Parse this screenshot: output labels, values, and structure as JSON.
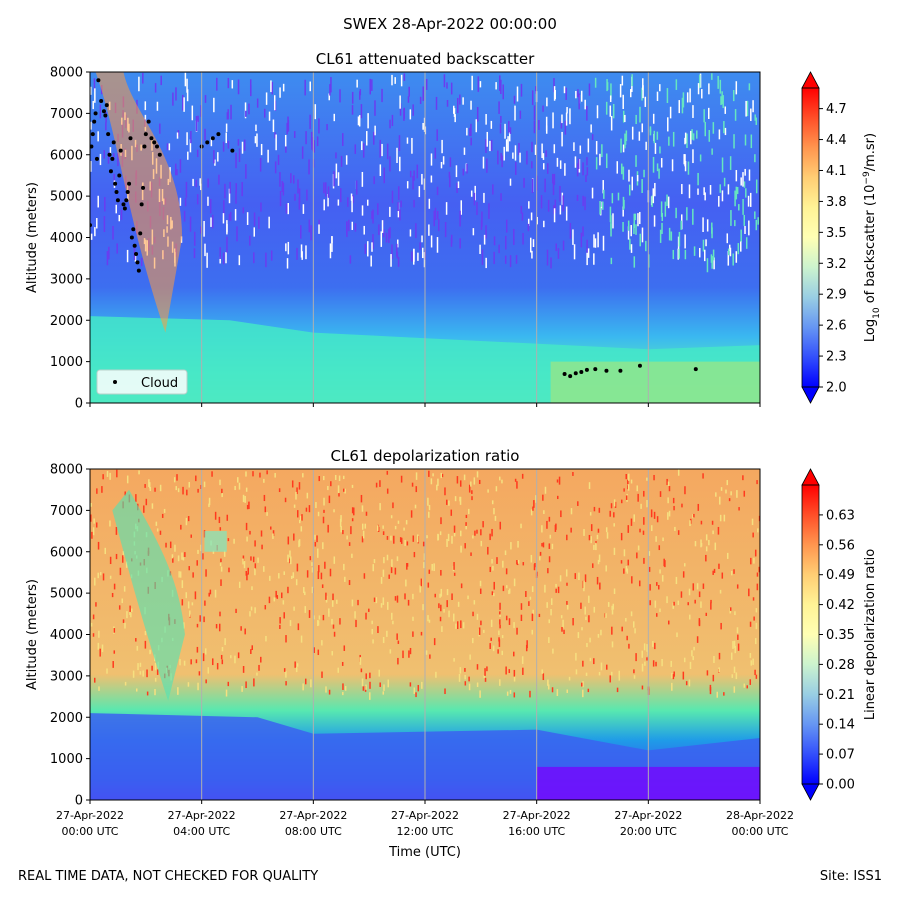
{
  "figure": {
    "title": "SWEX 28-Apr-2022 00:00:00",
    "footer_left": "REAL TIME DATA, NOT CHECKED FOR QUALITY",
    "footer_right": "Site: ISS1"
  },
  "chart_data": [
    {
      "type": "heatmap",
      "title": "CL61 attenuated backscatter",
      "xlabel": "",
      "ylabel": "Altitude (meters)",
      "xlim": [
        0,
        24
      ],
      "ylim": [
        0,
        8000
      ],
      "yticks": [
        0,
        1000,
        2000,
        3000,
        4000,
        5000,
        6000,
        7000,
        8000
      ],
      "xtick_hours": [
        0,
        4,
        8,
        12,
        16,
        20,
        24
      ],
      "x_ticklabels_shown": false,
      "grid": "vertical",
      "colormap": "rainbow",
      "colorbar": {
        "label_main": "Log",
        "label_sub": "10",
        "label_rest": " of backscatter (10",
        "label_sup": "−9",
        "label_end": "/m.sr)",
        "range": [
          2.0,
          4.9
        ],
        "extend": "both",
        "ticks": [
          "2.0",
          "2.3",
          "2.6",
          "2.9",
          "3.2",
          "3.5",
          "3.8",
          "4.1",
          "4.4",
          "4.7"
        ],
        "tick_values": [
          2.0,
          2.3,
          2.6,
          2.9,
          3.2,
          3.5,
          3.8,
          4.1,
          4.4,
          4.7
        ]
      },
      "legend": {
        "label": "Cloud",
        "marker": "black dot",
        "placement": "lower-left"
      },
      "cloud_points": [
        [
          0.05,
          6200
        ],
        [
          0.1,
          6500
        ],
        [
          0.15,
          6800
        ],
        [
          0.2,
          7000
        ],
        [
          0.25,
          5900
        ],
        [
          0.3,
          7800
        ],
        [
          0.4,
          7300
        ],
        [
          0.5,
          7050
        ],
        [
          0.55,
          6950
        ],
        [
          0.6,
          7200
        ],
        [
          0.65,
          6500
        ],
        [
          0.7,
          6000
        ],
        [
          0.75,
          5600
        ],
        [
          0.8,
          5900
        ],
        [
          0.85,
          6300
        ],
        [
          0.9,
          5300
        ],
        [
          0.95,
          5100
        ],
        [
          1.0,
          4900
        ],
        [
          1.05,
          5500
        ],
        [
          1.1,
          6100
        ],
        [
          1.2,
          4800
        ],
        [
          1.25,
          4700
        ],
        [
          1.3,
          4900
        ],
        [
          1.35,
          5100
        ],
        [
          1.4,
          5300
        ],
        [
          1.45,
          6400
        ],
        [
          1.5,
          4000
        ],
        [
          1.55,
          4200
        ],
        [
          1.6,
          3800
        ],
        [
          1.65,
          3600
        ],
        [
          1.7,
          3400
        ],
        [
          1.75,
          3200
        ],
        [
          1.8,
          4100
        ],
        [
          1.85,
          4800
        ],
        [
          1.9,
          5200
        ],
        [
          1.95,
          6200
        ],
        [
          2.0,
          6500
        ],
        [
          2.1,
          6800
        ],
        [
          2.2,
          6400
        ],
        [
          2.3,
          6300
        ],
        [
          2.4,
          6200
        ],
        [
          2.5,
          6000
        ],
        [
          0.0,
          4300
        ],
        [
          4.0,
          6200
        ],
        [
          4.2,
          6300
        ],
        [
          4.4,
          6400
        ],
        [
          4.6,
          6500
        ],
        [
          5.1,
          6100
        ],
        [
          17.0,
          700
        ],
        [
          17.2,
          650
        ],
        [
          17.4,
          720
        ],
        [
          17.6,
          750
        ],
        [
          17.8,
          800
        ],
        [
          18.1,
          820
        ],
        [
          18.5,
          780
        ],
        [
          19.0,
          780
        ],
        [
          19.7,
          900
        ],
        [
          21.7,
          820
        ]
      ]
    },
    {
      "type": "heatmap",
      "title": "CL61 depolarization ratio",
      "xlabel": "Time (UTC)",
      "ylabel": "Altitude (meters)",
      "xlim": [
        0,
        24
      ],
      "ylim": [
        0,
        8000
      ],
      "yticks": [
        0,
        1000,
        2000,
        3000,
        4000,
        5000,
        6000,
        7000,
        8000
      ],
      "xtick_hours": [
        0,
        4,
        8,
        12,
        16,
        20,
        24
      ],
      "x_ticklabels": [
        [
          "27-Apr-2022",
          "00:00 UTC"
        ],
        [
          "27-Apr-2022",
          "04:00 UTC"
        ],
        [
          "27-Apr-2022",
          "08:00 UTC"
        ],
        [
          "27-Apr-2022",
          "12:00 UTC"
        ],
        [
          "27-Apr-2022",
          "16:00 UTC"
        ],
        [
          "27-Apr-2022",
          "20:00 UTC"
        ],
        [
          "28-Apr-2022",
          "00:00 UTC"
        ]
      ],
      "grid": "vertical",
      "colormap": "rainbow",
      "colorbar": {
        "label": "Linear depolarization ratio",
        "range": [
          0.0,
          0.7
        ],
        "extend": "both",
        "ticks": [
          "0.00",
          "0.07",
          "0.14",
          "0.21",
          "0.28",
          "0.35",
          "0.42",
          "0.49",
          "0.56",
          "0.63"
        ],
        "tick_values": [
          0.0,
          0.07,
          0.14,
          0.21,
          0.28,
          0.35,
          0.42,
          0.49,
          0.56,
          0.63
        ]
      }
    }
  ]
}
